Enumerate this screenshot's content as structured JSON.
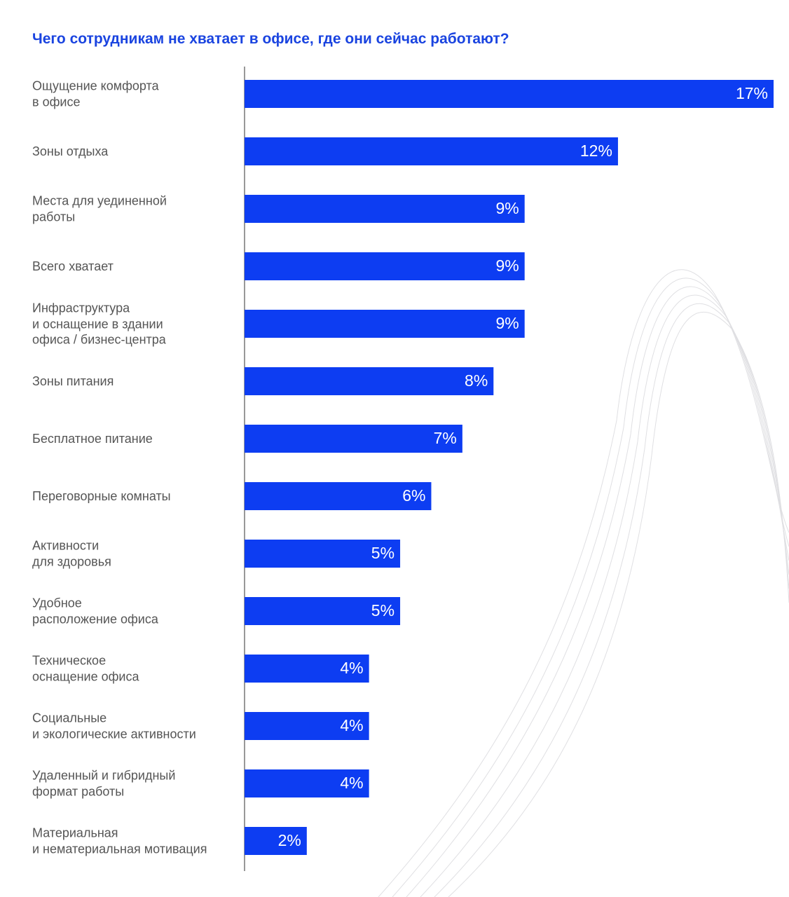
{
  "chart_data": {
    "type": "bar",
    "orientation": "horizontal",
    "title": "Чего сотрудникам не хватает в офисе, где они сейчас работают?",
    "categories": [
      "Ощущение комфорта\nв офисе",
      "Зоны отдыха",
      "Места для уединенной\nработы",
      "Всего хватает",
      "Инфраструктура\nи оснащение в здании\nофиса / бизнес-центра",
      "Зоны питания",
      "Бесплатное питание",
      "Переговорные комнаты",
      "Активности\nдля здоровья",
      "Удобное\nрасположение офиса",
      "Техническое\nоснащение офиса",
      "Социальные\nи экологические активности",
      "Удаленный и гибридный\nформат работы",
      "Материальная\nи нематериальная мотивация"
    ],
    "values": [
      17,
      12,
      9,
      9,
      9,
      8,
      7,
      6,
      5,
      5,
      4,
      4,
      4,
      2
    ],
    "value_labels": [
      "17%",
      "12%",
      "9%",
      "9%",
      "9%",
      "8%",
      "7%",
      "6%",
      "5%",
      "5%",
      "4%",
      "4%",
      "4%",
      "2%"
    ],
    "color": "#0d3df2"
  }
}
